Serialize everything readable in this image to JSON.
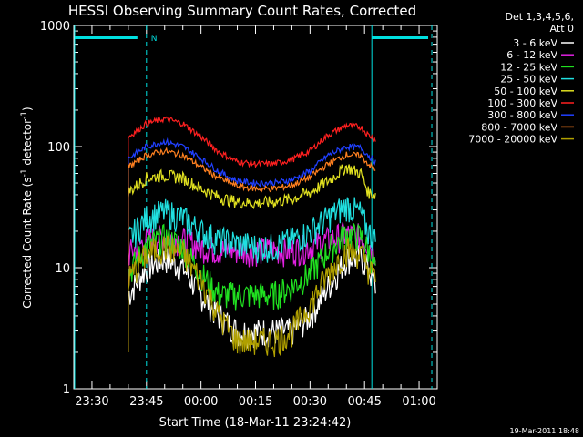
{
  "chart_data": {
    "type": "line",
    "title": "HESSI Observing Summary Count Rates, Corrected",
    "xlabel": "Start Time (18-Mar-11 23:24:42)",
    "ylabel_main": "Corrected Count Rate (s",
    "ylabel_sup1": "-1",
    "ylabel_mid": " detector",
    "ylabel_sup2": "-1",
    "ylabel_end": ")",
    "yscale": "log",
    "ylim": [
      1,
      1000
    ],
    "xlim_minutes": [
      -5,
      95
    ],
    "x_ticks": [
      {
        "t": 0,
        "label": "23:30"
      },
      {
        "t": 15,
        "label": "23:45"
      },
      {
        "t": 30,
        "label": "00:00"
      },
      {
        "t": 45,
        "label": "00:15"
      },
      {
        "t": 60,
        "label": "00:30"
      },
      {
        "t": 75,
        "label": "00:45"
      },
      {
        "t": 90,
        "label": "01:00"
      }
    ],
    "y_ticks": [
      {
        "v": 1,
        "label": "1"
      },
      {
        "v": 10,
        "label": "10"
      },
      {
        "v": 100,
        "label": "100"
      },
      {
        "v": 1000,
        "label": "1000"
      }
    ],
    "legend_header": [
      "Det 1,3,4,5,6,",
      "Att 0"
    ],
    "legend_placement": "top-right outside",
    "timestamp": "19-Mar-2011 18:48",
    "markers": [
      {
        "label": "N",
        "start": 12.5,
        "end": 15,
        "color": "#00e0e0"
      }
    ],
    "times": [
      10,
      15,
      20,
      25,
      30,
      35,
      40,
      45,
      50,
      55,
      60,
      65,
      70,
      74,
      76,
      78
    ],
    "series": [
      {
        "name": "3 - 6 keV",
        "color": "#ffffff",
        "values": [
          6,
          10,
          12,
          10,
          6,
          4,
          3,
          3,
          3,
          3,
          4,
          7,
          12,
          12,
          10,
          7
        ]
      },
      {
        "name": "6 - 12 keV",
        "color": "#e020e0",
        "values": [
          13,
          17,
          18,
          17,
          15,
          14,
          14,
          14,
          14,
          14,
          15,
          17,
          19,
          18,
          16,
          14
        ]
      },
      {
        "name": "12 - 25 keV",
        "color": "#20e020",
        "values": [
          9,
          15,
          18,
          15,
          9,
          6,
          6,
          6,
          6,
          7,
          9,
          14,
          19,
          18,
          14,
          10
        ]
      },
      {
        "name": "25 - 50 keV",
        "color": "#20e0e0",
        "values": [
          17,
          26,
          29,
          26,
          20,
          17,
          16,
          15,
          15,
          17,
          20,
          26,
          33,
          28,
          20,
          17
        ]
      },
      {
        "name": "50 - 100 keV",
        "color": "#e0e020",
        "values": [
          42,
          55,
          58,
          55,
          45,
          38,
          35,
          34,
          35,
          37,
          42,
          52,
          68,
          60,
          42,
          40
        ]
      },
      {
        "name": "100 - 300 keV",
        "color": "#ff2020",
        "values": [
          120,
          155,
          170,
          155,
          120,
          90,
          75,
          72,
          72,
          78,
          92,
          125,
          150,
          145,
          125,
          115
        ]
      },
      {
        "name": "300 - 800 keV",
        "color": "#2040ff",
        "values": [
          80,
          100,
          110,
          100,
          80,
          62,
          52,
          50,
          50,
          53,
          63,
          85,
          100,
          98,
          85,
          75
        ]
      },
      {
        "name": "800 - 7000 keV",
        "color": "#ff8020",
        "values": [
          68,
          85,
          92,
          85,
          68,
          55,
          47,
          45,
          45,
          48,
          56,
          72,
          86,
          84,
          72,
          63
        ]
      },
      {
        "name": "7000 - 20000 keV",
        "color": "#b0a000",
        "values": [
          8,
          13,
          15,
          13,
          8,
          4,
          2.5,
          2.5,
          2.5,
          3,
          5,
          9,
          14,
          13,
          10,
          8
        ]
      }
    ]
  }
}
